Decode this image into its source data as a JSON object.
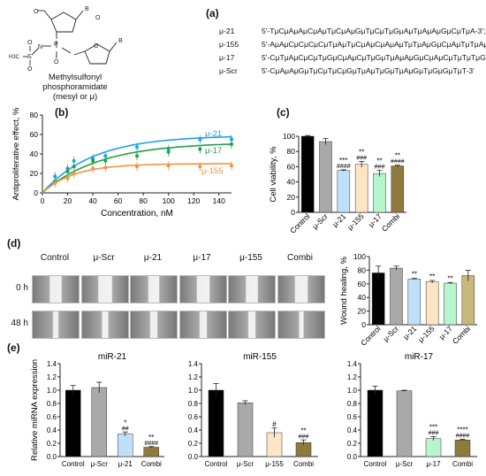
{
  "panel_a": {
    "label": "(a)",
    "structure_labels": [
      "B",
      "B",
      "O",
      "O",
      "O",
      "O",
      "O",
      "O",
      "P",
      "N",
      "S",
      "H3C"
    ],
    "caption_lines": [
      "Methylsulfonyl",
      "phosphoramidate",
      "(mesyl or μ)"
    ],
    "sequences": [
      {
        "name": "μ-21",
        "seq": "5'-TμCμAμAμCμAμTμCμAμGμTμCμTμGμAμTμAμAμGμCμTμA-3';"
      },
      {
        "name": "μ-155",
        "seq": "5'-AμAμCμCμCμCμTμAμTμCμAμCμAμAμTμTμAμGμCμAμTμTμAμA-3';"
      },
      {
        "name": "μ-17",
        "seq": "5'-CμTμAμCμCμTμGμCμAμCμTμGμTμAμAμGμCμAμCμTμTμTμG-3';"
      },
      {
        "name": "μ-Scr",
        "seq": "5'-CμAμAμGμTμCμTμCμGμTμAμTμGμTμAμGμTμGμGμTμT-3'"
      }
    ]
  },
  "chart_data": [
    {
      "panel": "(b)",
      "type": "scatter",
      "xlabel": "Concentration, nM",
      "ylabel": "Antiproliferative effect, %",
      "xlim": [
        0,
        150
      ],
      "ylim": [
        0,
        80
      ],
      "xticks": [
        "0",
        "20",
        "40",
        "60",
        "80",
        "100",
        "120",
        "140"
      ],
      "yticks": [
        "0",
        "20",
        "40",
        "60",
        "80"
      ],
      "series": [
        {
          "name": "μ-21",
          "color": "#1aa3e8",
          "x": [
            10,
            20,
            25,
            40,
            50,
            75,
            100,
            125,
            150
          ],
          "y": [
            17,
            25,
            33,
            35,
            38,
            47,
            45,
            55,
            55
          ],
          "fit_ymax": 59,
          "fit_k": 0.025
        },
        {
          "name": "μ-17",
          "color": "#22a04a",
          "x": [
            10,
            20,
            25,
            40,
            50,
            75,
            100,
            125,
            150
          ],
          "y": [
            12,
            22,
            27,
            33,
            33,
            38,
            42,
            45,
            50
          ],
          "fit_ymax": 52,
          "fit_k": 0.022
        },
        {
          "name": "μ-155",
          "color": "#f5953a",
          "x": [
            10,
            20,
            25,
            40,
            50,
            75,
            100,
            125,
            150
          ],
          "y": [
            10,
            15,
            20,
            25,
            26,
            27,
            28,
            27,
            28
          ],
          "fit_ymax": 30,
          "fit_k": 0.04
        }
      ]
    },
    {
      "panel": "(c)",
      "type": "bar",
      "ylabel": "Cell viability, %",
      "ylim": [
        0,
        100
      ],
      "yticks": [
        "0",
        "20",
        "40",
        "60",
        "80",
        "100"
      ],
      "categories": [
        "Control",
        "μ-Scr",
        "μ-21",
        "μ-155",
        "μ-17",
        "Combi"
      ],
      "values": [
        100,
        93,
        55,
        63,
        51,
        61
      ],
      "errors": [
        1,
        4,
        1,
        4,
        4,
        1
      ],
      "colors": [
        "#000000",
        "#a9a9a9",
        "#bfe0fb",
        "#fde5c6",
        "#b7f5cd",
        "#8f7a3e"
      ],
      "sig_top": [
        "",
        "",
        "***",
        "**",
        "**",
        "**"
      ],
      "sig_bot": [
        "",
        "",
        "####",
        "###",
        "###",
        "####"
      ]
    },
    {
      "panel": "(d)",
      "type": "bar",
      "ylabel": "Wound healing, %",
      "ylim": [
        0,
        100
      ],
      "yticks": [
        "0",
        "20",
        "40",
        "60",
        "80",
        "100"
      ],
      "categories": [
        "Control",
        "μ-Scr",
        "μ-21",
        "μ-155",
        "μ-17",
        "Combi"
      ],
      "values": [
        76,
        83,
        67,
        63,
        61,
        72
      ],
      "errors": [
        10,
        3,
        1,
        2,
        1,
        8
      ],
      "colors": [
        "#000000",
        "#a9a9a9",
        "#bfe0fb",
        "#fde5c6",
        "#b7f5cd",
        "#c8b97a"
      ],
      "sig_top": [
        "",
        "",
        "**",
        "**",
        "**",
        ""
      ],
      "sig_bot": [
        "",
        "",
        "",
        "",
        "",
        ""
      ]
    },
    {
      "panel": "(e)",
      "type": "bar",
      "title": "miR-21",
      "ylabel": "Relative miRNA expression",
      "ylim": [
        0,
        1.4
      ],
      "yticks": [
        "0.0",
        "0.2",
        "0.4",
        "0.6",
        "0.8",
        "1.0",
        "1.2",
        "1.4"
      ],
      "categories": [
        "Control",
        "μ-Scr",
        "μ-21",
        "Combi"
      ],
      "values": [
        1.0,
        1.04,
        0.34,
        0.14
      ],
      "errors": [
        0.07,
        0.08,
        0.03,
        0.01
      ],
      "colors": [
        "#000000",
        "#a9a9a9",
        "#bfe0fb",
        "#8f7a3e"
      ],
      "sig_top": [
        "",
        "",
        "*",
        "**"
      ],
      "sig_bot": [
        "",
        "",
        "##",
        "####"
      ]
    },
    {
      "panel": "(e)",
      "type": "bar",
      "title": "miR-155",
      "ylim": [
        0,
        1.4
      ],
      "yticks": [
        "0.0",
        "0.2",
        "0.4",
        "0.6",
        "0.8",
        "1.0",
        "1.2",
        "1.4"
      ],
      "categories": [
        "Control",
        "μ-Scr",
        "μ-155",
        "Combi"
      ],
      "values": [
        1.0,
        0.81,
        0.36,
        0.21
      ],
      "errors": [
        0.1,
        0.03,
        0.07,
        0.04
      ],
      "colors": [
        "#000000",
        "#a9a9a9",
        "#fde5c6",
        "#8f7a3e"
      ],
      "sig_top": [
        "",
        "",
        "#",
        "**"
      ],
      "sig_bot": [
        "",
        "",
        "",
        "###"
      ]
    },
    {
      "panel": "(e)",
      "type": "bar",
      "title": "miR-17",
      "ylim": [
        0,
        1.4
      ],
      "yticks": [
        "0.0",
        "0.2",
        "0.4",
        "0.6",
        "0.8",
        "1.0",
        "1.2",
        "1.4"
      ],
      "categories": [
        "Control",
        "μ-Scr",
        "μ-17",
        "Combi"
      ],
      "values": [
        1.0,
        0.99,
        0.27,
        0.25
      ],
      "errors": [
        0.06,
        0.01,
        0.03,
        0.01
      ],
      "colors": [
        "#000000",
        "#a9a9a9",
        "#b7f5cd",
        "#8f7a3e"
      ],
      "sig_top": [
        "",
        "",
        "***",
        "****"
      ],
      "sig_bot": [
        "",
        "",
        "###",
        "####"
      ]
    }
  ],
  "panel_d": {
    "label": "(d)",
    "columns": [
      "Control",
      "μ-Scr",
      "μ-21",
      "μ-17",
      "μ-155",
      "Combi"
    ],
    "rows": [
      "0 h",
      "48 h"
    ]
  },
  "labels": {
    "b": "(b)",
    "c": "(c)",
    "e": "(e)"
  }
}
